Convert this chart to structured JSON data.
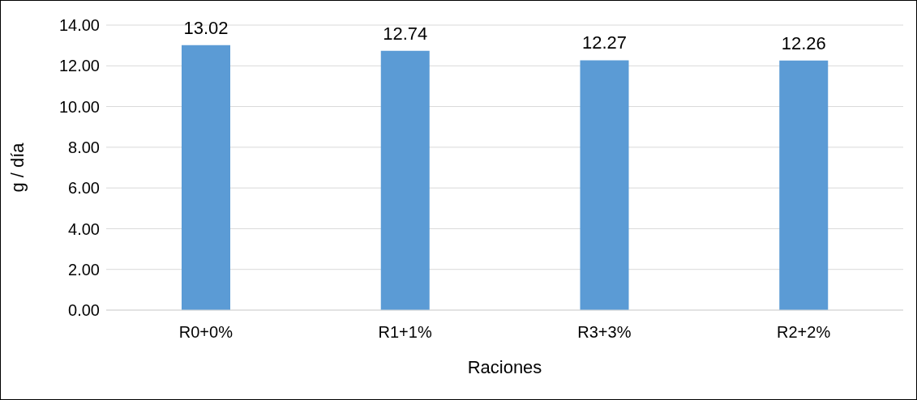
{
  "chart_data": {
    "type": "bar",
    "xlabel": "Raciones",
    "ylabel": "g / día",
    "categories": [
      "R0+0%",
      "R1+1%",
      "R3+3%",
      "R2+2%"
    ],
    "values": [
      13.02,
      12.74,
      12.27,
      12.26
    ],
    "color": "#5b9bd5",
    "ylim": [
      0,
      14
    ],
    "yticks": [
      {
        "value": 0,
        "label": "0.00"
      },
      {
        "value": 2,
        "label": "2.00"
      },
      {
        "value": 4,
        "label": "4.00"
      },
      {
        "value": 6,
        "label": "6.00"
      },
      {
        "value": 8,
        "label": "8.00"
      },
      {
        "value": 10,
        "label": "10.00"
      },
      {
        "value": 12,
        "label": "12.00"
      },
      {
        "value": 14,
        "label": "14.00"
      }
    ],
    "grid": "y",
    "data_labels": true
  }
}
